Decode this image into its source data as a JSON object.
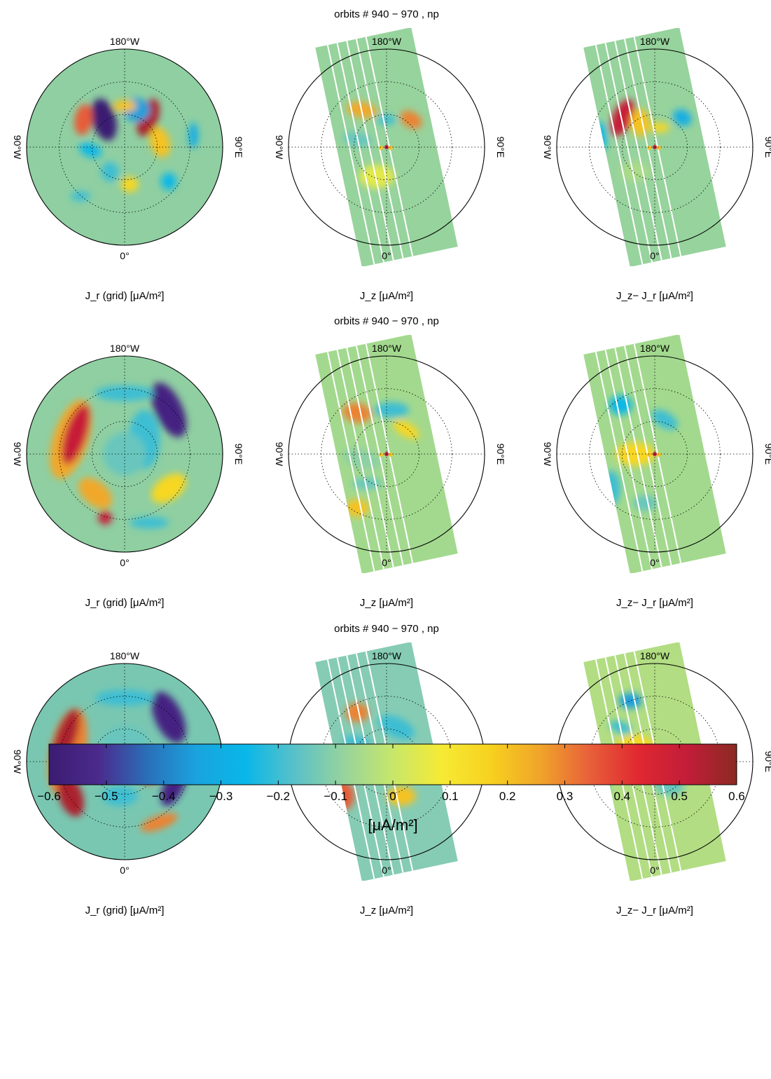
{
  "chart_data": {
    "type": "heatmap",
    "projection": "polar",
    "colormap": "parula-like (dark blue → cyan → green → yellow → orange → red → dark red)",
    "clim": [
      -0.6,
      0.6
    ],
    "colorbar": {
      "ticks": [
        -0.6,
        -0.5,
        -0.4,
        -0.3,
        -0.2,
        -0.1,
        0,
        0.1,
        0.2,
        0.3,
        0.4,
        0.5,
        0.6
      ],
      "tick_labels": [
        "−0.6",
        "−0.5",
        "−0.4",
        "−0.3",
        "−0.2",
        "−0.1",
        "0",
        "0.1",
        "0.2",
        "0.3",
        "0.4",
        "0.5",
        "0.6"
      ],
      "unit_label": "[μA/m²]",
      "gradient_colors": [
        "#3b1c72",
        "#4b2a8c",
        "#2a6fb8",
        "#1aa3de",
        "#09b7e8",
        "#58c1c9",
        "#97d39d",
        "#c7e76a",
        "#f6ea35",
        "#f7d11e",
        "#f0a42a",
        "#e8603a",
        "#e02831",
        "#c21d39",
        "#8b2a22"
      ]
    },
    "polar_labels": {
      "top": "180°W",
      "left": "90°W",
      "right": "90°E",
      "bottom": "0°"
    },
    "rows": [
      {
        "title": "orbits # 940 − 970 ,  np",
        "panels": [
          {
            "label": "J_r (grid) [μA/m²]",
            "background": "#8fcfa2",
            "blobs": [
              {
                "dx": -0.21,
                "dy": -0.28,
                "rx": 0.12,
                "ry": 0.22,
                "angle": -15,
                "value": -0.6
              },
              {
                "dx": 0.24,
                "dy": -0.3,
                "rx": 0.1,
                "ry": 0.2,
                "angle": 20,
                "value": 0.55
              },
              {
                "dx": -0.42,
                "dy": -0.28,
                "rx": 0.09,
                "ry": 0.16,
                "angle": 10,
                "value": 0.35
              },
              {
                "dx": 0.12,
                "dy": -0.38,
                "rx": 0.14,
                "ry": 0.12,
                "angle": 0,
                "value": -0.35
              },
              {
                "dx": 0.0,
                "dy": -0.42,
                "rx": 0.12,
                "ry": 0.06,
                "angle": 0,
                "value": 0.2
              },
              {
                "dx": -0.35,
                "dy": 0.03,
                "rx": 0.12,
                "ry": 0.07,
                "angle": 20,
                "value": -0.25
              },
              {
                "dx": 0.36,
                "dy": -0.05,
                "rx": 0.1,
                "ry": 0.16,
                "angle": -15,
                "value": 0.2
              },
              {
                "dx": -0.15,
                "dy": 0.25,
                "rx": 0.09,
                "ry": 0.1,
                "angle": 0,
                "value": -0.2
              },
              {
                "dx": 0.05,
                "dy": 0.38,
                "rx": 0.09,
                "ry": 0.08,
                "angle": 0,
                "value": 0.15
              },
              {
                "dx": 0.45,
                "dy": 0.35,
                "rx": 0.08,
                "ry": 0.09,
                "angle": 0,
                "value": -0.25
              },
              {
                "dx": -0.45,
                "dy": 0.5,
                "rx": 0.1,
                "ry": 0.05,
                "angle": 0,
                "value": -0.2
              },
              {
                "dx": 0.7,
                "dy": -0.12,
                "rx": 0.05,
                "ry": 0.13,
                "angle": 0,
                "value": -0.3
              }
            ]
          },
          {
            "label": "J_z [μA/m²]",
            "background": "#97d39d",
            "blobs": [
              {
                "dx": -0.25,
                "dy": -0.38,
                "rx": 0.16,
                "ry": 0.08,
                "angle": 10,
                "value": 0.25
              },
              {
                "dx": 0.25,
                "dy": -0.28,
                "rx": 0.12,
                "ry": 0.08,
                "angle": 30,
                "value": 0.3
              },
              {
                "dx": 0.0,
                "dy": -0.28,
                "rx": 0.1,
                "ry": 0.05,
                "angle": 0,
                "value": -0.2
              },
              {
                "dx": -0.3,
                "dy": -0.08,
                "rx": 0.15,
                "ry": 0.07,
                "angle": 10,
                "value": -0.15
              },
              {
                "dx": -0.1,
                "dy": 0.3,
                "rx": 0.18,
                "ry": 0.12,
                "angle": 0,
                "value": 0.05
              }
            ]
          },
          {
            "label": "J_z− J_r [μA/m²]",
            "background": "#97d39d",
            "blobs": [
              {
                "dx": -0.33,
                "dy": -0.3,
                "rx": 0.1,
                "ry": 0.2,
                "angle": 25,
                "value": 0.5
              },
              {
                "dx": -0.15,
                "dy": -0.25,
                "rx": 0.1,
                "ry": 0.14,
                "angle": 0,
                "value": 0.2
              },
              {
                "dx": -0.55,
                "dy": -0.1,
                "rx": 0.06,
                "ry": 0.16,
                "angle": 0,
                "value": -0.25
              },
              {
                "dx": 0.28,
                "dy": -0.3,
                "rx": 0.1,
                "ry": 0.08,
                "angle": 30,
                "value": -0.3
              },
              {
                "dx": 0.05,
                "dy": -0.2,
                "rx": 0.1,
                "ry": 0.05,
                "angle": 0,
                "value": 0.15
              },
              {
                "dx": -0.2,
                "dy": 0.25,
                "rx": 0.15,
                "ry": 0.1,
                "angle": 0,
                "value": -0.05
              }
            ]
          }
        ]
      },
      {
        "title": "orbits # 940 − 970 ,  np",
        "panels": [
          {
            "label": "J_r (grid) [μA/m²]",
            "background": "#8fcfa2",
            "blobs": [
              {
                "dx": -0.55,
                "dy": -0.15,
                "rx": 0.18,
                "ry": 0.42,
                "angle": 18,
                "value": 0.25
              },
              {
                "dx": -0.5,
                "dy": -0.2,
                "rx": 0.11,
                "ry": 0.32,
                "angle": 18,
                "value": 0.5
              },
              {
                "dx": 0.45,
                "dy": -0.45,
                "rx": 0.14,
                "ry": 0.3,
                "angle": -25,
                "value": -0.55
              },
              {
                "dx": 0.2,
                "dy": -0.15,
                "rx": 0.16,
                "ry": 0.3,
                "angle": 0,
                "value": -0.2
              },
              {
                "dx": -0.3,
                "dy": 0.4,
                "rx": 0.2,
                "ry": 0.12,
                "angle": 40,
                "value": 0.25
              },
              {
                "dx": -0.2,
                "dy": 0.65,
                "rx": 0.07,
                "ry": 0.07,
                "angle": 0,
                "value": 0.5
              },
              {
                "dx": 0.45,
                "dy": 0.35,
                "rx": 0.2,
                "ry": 0.12,
                "angle": -35,
                "value": 0.15
              },
              {
                "dx": 0.0,
                "dy": 0.0,
                "rx": 0.22,
                "ry": 0.22,
                "angle": 0,
                "value": -0.15
              },
              {
                "dx": 0.0,
                "dy": -0.62,
                "rx": 0.3,
                "ry": 0.08,
                "angle": 0,
                "value": -0.2
              },
              {
                "dx": 0.25,
                "dy": 0.7,
                "rx": 0.2,
                "ry": 0.06,
                "angle": 0,
                "value": -0.2
              }
            ]
          },
          {
            "label": "J_z [μA/m²]",
            "background": "#a3d98e",
            "blobs": [
              {
                "dx": -0.3,
                "dy": -0.42,
                "rx": 0.15,
                "ry": 0.1,
                "angle": 10,
                "value": 0.3
              },
              {
                "dx": 0.05,
                "dy": -0.45,
                "rx": 0.18,
                "ry": 0.08,
                "angle": 0,
                "value": -0.2
              },
              {
                "dx": 0.2,
                "dy": -0.25,
                "rx": 0.15,
                "ry": 0.07,
                "angle": 30,
                "value": 0.15
              },
              {
                "dx": -0.25,
                "dy": 0.05,
                "rx": 0.2,
                "ry": 0.1,
                "angle": 15,
                "value": -0.1
              },
              {
                "dx": -0.3,
                "dy": 0.55,
                "rx": 0.12,
                "ry": 0.09,
                "angle": 0,
                "value": 0.2
              },
              {
                "dx": -0.2,
                "dy": 0.3,
                "rx": 0.15,
                "ry": 0.06,
                "angle": 0,
                "value": -0.15
              }
            ]
          },
          {
            "label": "J_z− J_r [μA/m²]",
            "background": "#a3d98e",
            "blobs": [
              {
                "dx": -0.35,
                "dy": -0.5,
                "rx": 0.12,
                "ry": 0.1,
                "angle": 0,
                "value": -0.25
              },
              {
                "dx": 0.55,
                "dy": -0.5,
                "rx": 0.07,
                "ry": 0.1,
                "angle": 0,
                "value": 0.3
              },
              {
                "dx": 0.1,
                "dy": -0.35,
                "rx": 0.15,
                "ry": 0.08,
                "angle": 30,
                "value": -0.2
              },
              {
                "dx": -0.2,
                "dy": 0.0,
                "rx": 0.2,
                "ry": 0.12,
                "angle": 0,
                "value": 0.15
              },
              {
                "dx": -0.45,
                "dy": 0.35,
                "rx": 0.1,
                "ry": 0.18,
                "angle": 0,
                "value": -0.2
              },
              {
                "dx": -0.1,
                "dy": 0.5,
                "rx": 0.12,
                "ry": 0.08,
                "angle": 0,
                "value": -0.15
              }
            ]
          }
        ]
      },
      {
        "title": "orbits # 940 − 970 ,  np",
        "panels": [
          {
            "label": "J_r (grid) [μA/m²]",
            "background": "#79c7b1",
            "blobs": [
              {
                "dx": -0.58,
                "dy": -0.1,
                "rx": 0.18,
                "ry": 0.45,
                "angle": 12,
                "value": 0.3
              },
              {
                "dx": -0.6,
                "dy": -0.25,
                "rx": 0.1,
                "ry": 0.3,
                "angle": 20,
                "value": 0.55
              },
              {
                "dx": -0.55,
                "dy": 0.35,
                "rx": 0.12,
                "ry": 0.22,
                "angle": -20,
                "value": 0.55
              },
              {
                "dx": 0.45,
                "dy": -0.45,
                "rx": 0.14,
                "ry": 0.28,
                "angle": -25,
                "value": -0.55
              },
              {
                "dx": 0.5,
                "dy": 0.25,
                "rx": 0.1,
                "ry": 0.22,
                "angle": 25,
                "value": -0.55
              },
              {
                "dx": 0.25,
                "dy": 0.15,
                "rx": 0.1,
                "ry": 0.08,
                "angle": 0,
                "value": 0.35
              },
              {
                "dx": 0.35,
                "dy": 0.62,
                "rx": 0.2,
                "ry": 0.07,
                "angle": -20,
                "value": 0.3
              },
              {
                "dx": 0.0,
                "dy": -0.15,
                "rx": 0.25,
                "ry": 0.22,
                "angle": 0,
                "value": -0.15
              },
              {
                "dx": 0.0,
                "dy": -0.65,
                "rx": 0.3,
                "ry": 0.08,
                "angle": 0,
                "value": -0.2
              },
              {
                "dx": -0.05,
                "dy": 0.35,
                "rx": 0.18,
                "ry": 0.1,
                "angle": 0,
                "value": -0.2
              }
            ]
          },
          {
            "label": "J_z [μA/m²]",
            "background": "#86ccb4",
            "blobs": [
              {
                "dx": -0.3,
                "dy": -0.5,
                "rx": 0.12,
                "ry": 0.1,
                "angle": 0,
                "value": 0.3
              },
              {
                "dx": 0.1,
                "dy": -0.35,
                "rx": 0.2,
                "ry": 0.1,
                "angle": 25,
                "value": -0.2
              },
              {
                "dx": -0.45,
                "dy": 0.35,
                "rx": 0.12,
                "ry": 0.15,
                "angle": 0,
                "value": 0.35
              },
              {
                "dx": -0.15,
                "dy": 0.0,
                "rx": 0.25,
                "ry": 0.12,
                "angle": 10,
                "value": 0.1
              },
              {
                "dx": 0.15,
                "dy": 0.35,
                "rx": 0.15,
                "ry": 0.1,
                "angle": 0,
                "value": 0.2
              },
              {
                "dx": -0.3,
                "dy": -0.2,
                "rx": 0.15,
                "ry": 0.06,
                "angle": 10,
                "value": -0.2
              }
            ]
          },
          {
            "label": "J_z− J_r [μA/m²]",
            "background": "#b2dd83",
            "blobs": [
              {
                "dx": -0.25,
                "dy": -0.62,
                "rx": 0.12,
                "ry": 0.08,
                "angle": 0,
                "value": -0.35
              },
              {
                "dx": 0.55,
                "dy": -0.5,
                "rx": 0.08,
                "ry": 0.12,
                "angle": 0,
                "value": 0.4
              },
              {
                "dx": -0.55,
                "dy": 0.3,
                "rx": 0.07,
                "ry": 0.15,
                "angle": 0,
                "value": -0.3
              },
              {
                "dx": -0.2,
                "dy": -0.15,
                "rx": 0.2,
                "ry": 0.12,
                "angle": 0,
                "value": 0.15
              },
              {
                "dx": 0.15,
                "dy": 0.25,
                "rx": 0.15,
                "ry": 0.1,
                "angle": 0,
                "value": -0.15
              },
              {
                "dx": -0.35,
                "dy": -0.35,
                "rx": 0.12,
                "ry": 0.06,
                "angle": 20,
                "value": -0.2
              }
            ]
          }
        ]
      }
    ]
  }
}
